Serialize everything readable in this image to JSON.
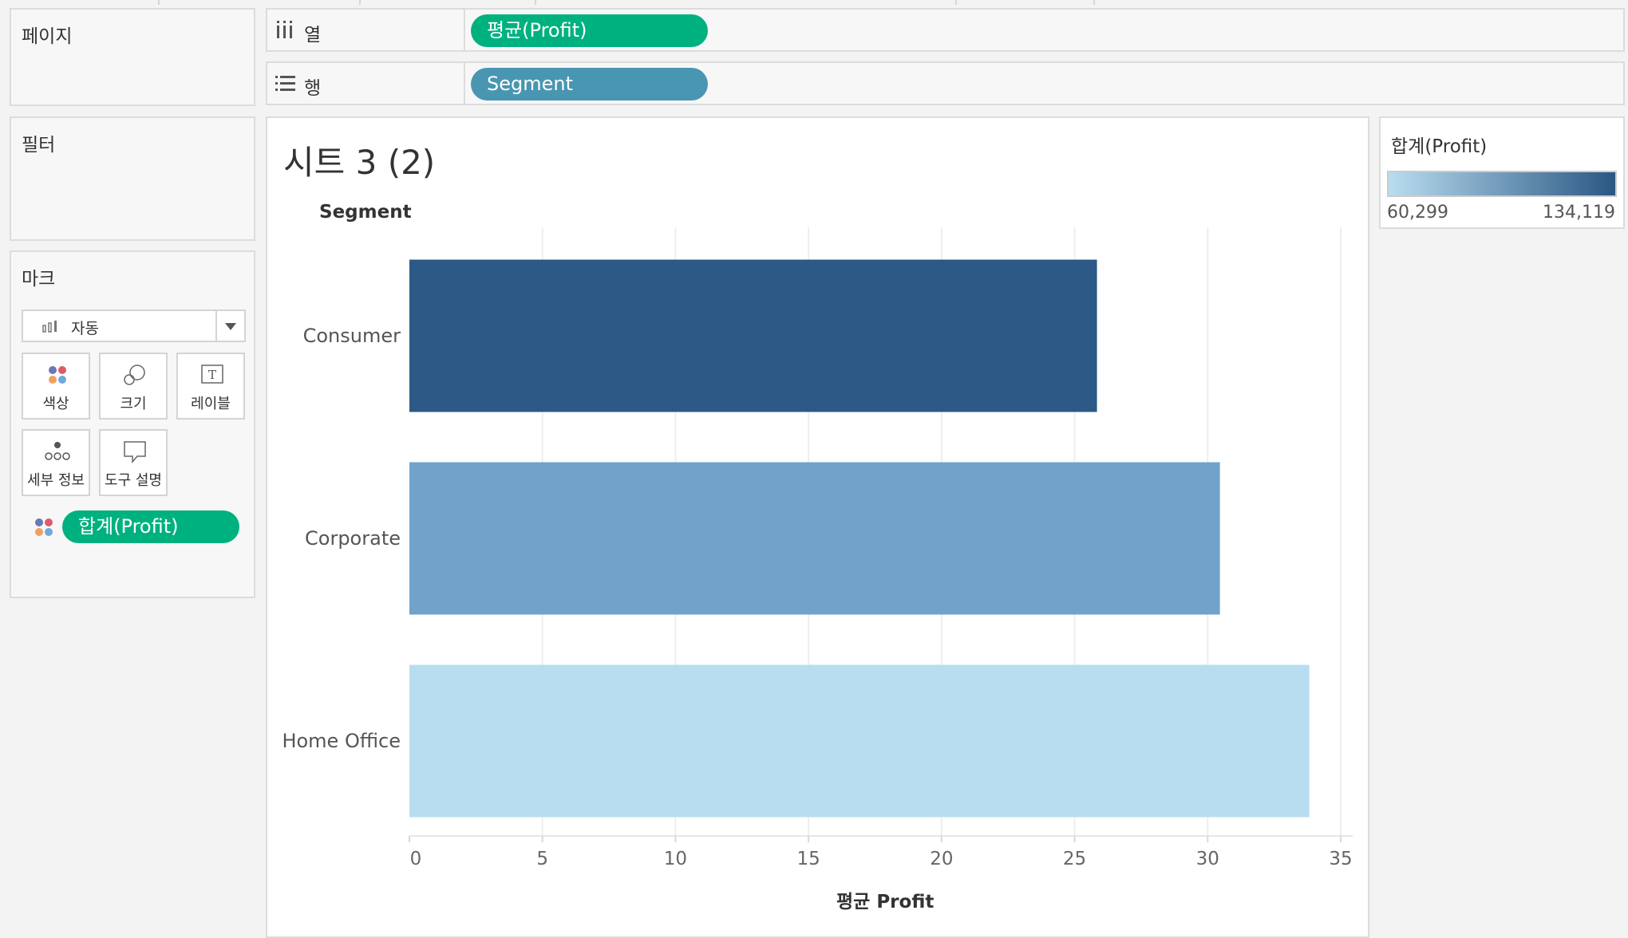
{
  "pages_card": {
    "title": "페이지"
  },
  "filters_card": {
    "title": "필터"
  },
  "marks_card": {
    "title": "마크",
    "mark_type": "자동",
    "buttons": [
      {
        "label": "색상",
        "icon": "color-dots-icon"
      },
      {
        "label": "크기",
        "icon": "size-circles-icon"
      },
      {
        "label": "레이블",
        "icon": "text-label-icon"
      },
      {
        "label": "세부 정보",
        "icon": "detail-dots-icon"
      },
      {
        "label": "도구 설명",
        "icon": "tooltip-bubble-icon"
      }
    ],
    "color_pill": "합계(Profit)"
  },
  "shelves": {
    "columns": {
      "label": "열",
      "pill": "평균(Profit)",
      "pill_color": "#00b180"
    },
    "rows": {
      "label": "행",
      "pill": "Segment",
      "pill_color": "#4996b2"
    }
  },
  "sheet": {
    "title": "시트 3 (2)",
    "row_header": "Segment"
  },
  "legend": {
    "title": "합계(Profit)",
    "min_label": "60,299",
    "max_label": "134,119",
    "min_color": "#b9ddf0",
    "max_color": "#2a5783"
  },
  "chart_data": {
    "type": "bar",
    "orientation": "horizontal",
    "categories": [
      "Consumer",
      "Corporate",
      "Home Office"
    ],
    "values": [
      25.84,
      30.46,
      33.82
    ],
    "color_values": [
      134119,
      91979,
      60299
    ],
    "colors": [
      "#2c5985",
      "#71a3ca",
      "#b9ddf0"
    ],
    "xlabel": "평균 Profit",
    "ylabel": "Segment",
    "xlim": [
      0,
      35
    ],
    "xticks": [
      "0",
      "5",
      "10",
      "15",
      "20",
      "25",
      "30",
      "35"
    ],
    "grid": true
  }
}
